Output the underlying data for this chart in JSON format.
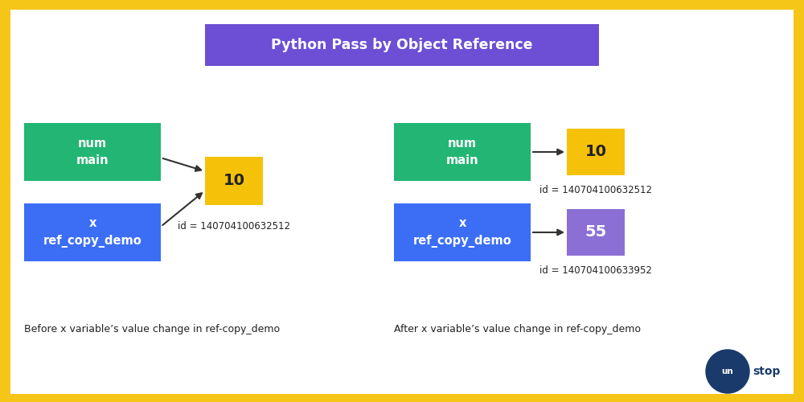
{
  "title": "Python Pass by Object Reference",
  "title_bg": "#6c4fd4",
  "title_color": "#ffffff",
  "border_color": "#f5c518",
  "bg_color": "#ffffff",
  "green_color": "#22b573",
  "blue_color": "#3b6ef5",
  "yellow_color": "#f5c209",
  "purple_color": "#8b6fd4",
  "left_panel_caption": "Before x variable’s value change in ref-copy_demo",
  "right_panel_caption": "After x variable’s value change in ref-copy_demo",
  "left_num_label": "num\nmain",
  "left_x_label": "x\nref_copy_demo",
  "left_value": "10",
  "left_id": "id = 140704100632512",
  "right_num_label": "num\nmain",
  "right_x_label": "x\nref_copy_demo",
  "right_num_value": "10",
  "right_num_id": "id = 140704100632512",
  "right_x_value": "55",
  "right_x_id": "id = 140704100633952",
  "unstop_circle_color": "#1a3a6b",
  "unstop_text_white": "#ffffff",
  "unstop_text_yellow": "#f5c209"
}
